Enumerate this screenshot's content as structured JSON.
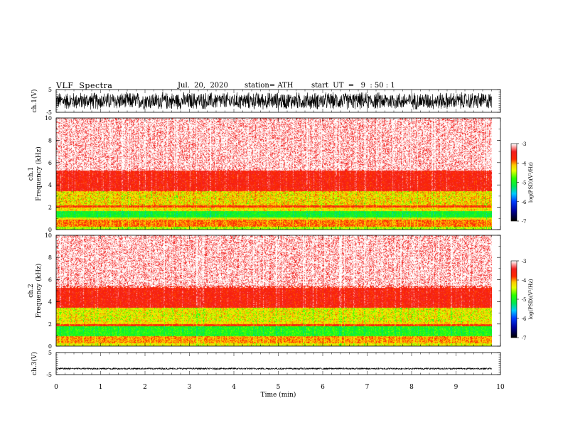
{
  "header": {
    "title": "VLF  Spectra",
    "date": "Jul.  20,  2020",
    "station": "station= ATH",
    "start": "start  UT  =   9  : 50 : 1"
  },
  "chart_data": [
    {
      "type": "line",
      "name": "ch.1 waveform",
      "ylabel": "ch.1(V)",
      "ylim": [
        -5,
        5
      ],
      "yticks": [
        "5",
        "-5"
      ],
      "xlim": [
        0,
        10
      ],
      "data_end": 9.8,
      "amplitude": 4.2,
      "color": "#000000"
    },
    {
      "type": "heatmap",
      "name": "ch.1 spectrogram",
      "ylabel": "ch.1\nFrequency  (kHz)",
      "ylabel_lines": [
        "ch.1",
        "Frequency  (kHz)"
      ],
      "ylim": [
        0,
        10
      ],
      "yticks": [
        "0",
        "2",
        "4",
        "6",
        "8",
        "10"
      ],
      "xlim": [
        0,
        10
      ],
      "data_end": 9.8,
      "bands": [
        {
          "f0": 0,
          "f1": 0.3,
          "level": -4.5
        },
        {
          "f0": 0.3,
          "f1": 0.9,
          "level": -3.9
        },
        {
          "f0": 0.9,
          "f1": 1.1,
          "level": -4.3
        },
        {
          "f0": 1.1,
          "f1": 1.7,
          "level": -5.0
        },
        {
          "f0": 1.7,
          "f1": 2.0,
          "level": -4.2
        },
        {
          "f0": 2.0,
          "f1": 2.2,
          "level": -3.7
        },
        {
          "f0": 2.2,
          "f1": 3.5,
          "level": -4.1
        },
        {
          "f0": 3.5,
          "f1": 5.3,
          "level": -3.6
        },
        {
          "f0": 5.3,
          "f1": 10,
          "level": -3.2
        }
      ],
      "colorbar": {
        "label": "log(PSD)(V²/Hz)",
        "ticks": [
          "-3",
          "-4",
          "-5",
          "-6",
          "-7"
        ],
        "range": [
          -7,
          -3
        ]
      }
    },
    {
      "type": "heatmap",
      "name": "ch.2 spectrogram",
      "ylabel": "ch.2\nFrequency  (kHz)",
      "ylabel_lines": [
        "ch.2",
        "Frequency  (kHz)"
      ],
      "ylim": [
        0,
        10
      ],
      "yticks": [
        "0",
        "2",
        "4",
        "6",
        "8",
        "10"
      ],
      "xlim": [
        0,
        10
      ],
      "data_end": 9.8,
      "bands": [
        {
          "f0": 0,
          "f1": 0.3,
          "level": -4.3
        },
        {
          "f0": 0.3,
          "f1": 0.9,
          "level": -4.0
        },
        {
          "f0": 0.9,
          "f1": 1.8,
          "level": -4.9
        },
        {
          "f0": 1.8,
          "f1": 2.0,
          "level": -3.7
        },
        {
          "f0": 2.0,
          "f1": 3.5,
          "level": -4.2
        },
        {
          "f0": 3.5,
          "f1": 5.5,
          "level": -3.6
        },
        {
          "f0": 5.5,
          "f1": 10,
          "level": -3.2
        }
      ],
      "colorbar": {
        "label": "log(PSD)(V²/Hz)",
        "ticks": [
          "-3",
          "-4",
          "-5",
          "-6",
          "-7"
        ],
        "range": [
          -7,
          -3
        ]
      }
    },
    {
      "type": "line",
      "name": "ch.3 waveform",
      "ylabel": "ch.3(V)",
      "ylim": [
        -5,
        5
      ],
      "yticks": [
        "5",
        "-5"
      ],
      "xlim": [
        0,
        10
      ],
      "data_end": 9.8,
      "offset": -2.3,
      "amplitude": 0.35,
      "color": "#000000",
      "xlabel": "Time  (min)",
      "xticks": [
        "0",
        "1",
        "2",
        "3",
        "4",
        "5",
        "6",
        "7",
        "8",
        "9",
        "10"
      ]
    }
  ]
}
